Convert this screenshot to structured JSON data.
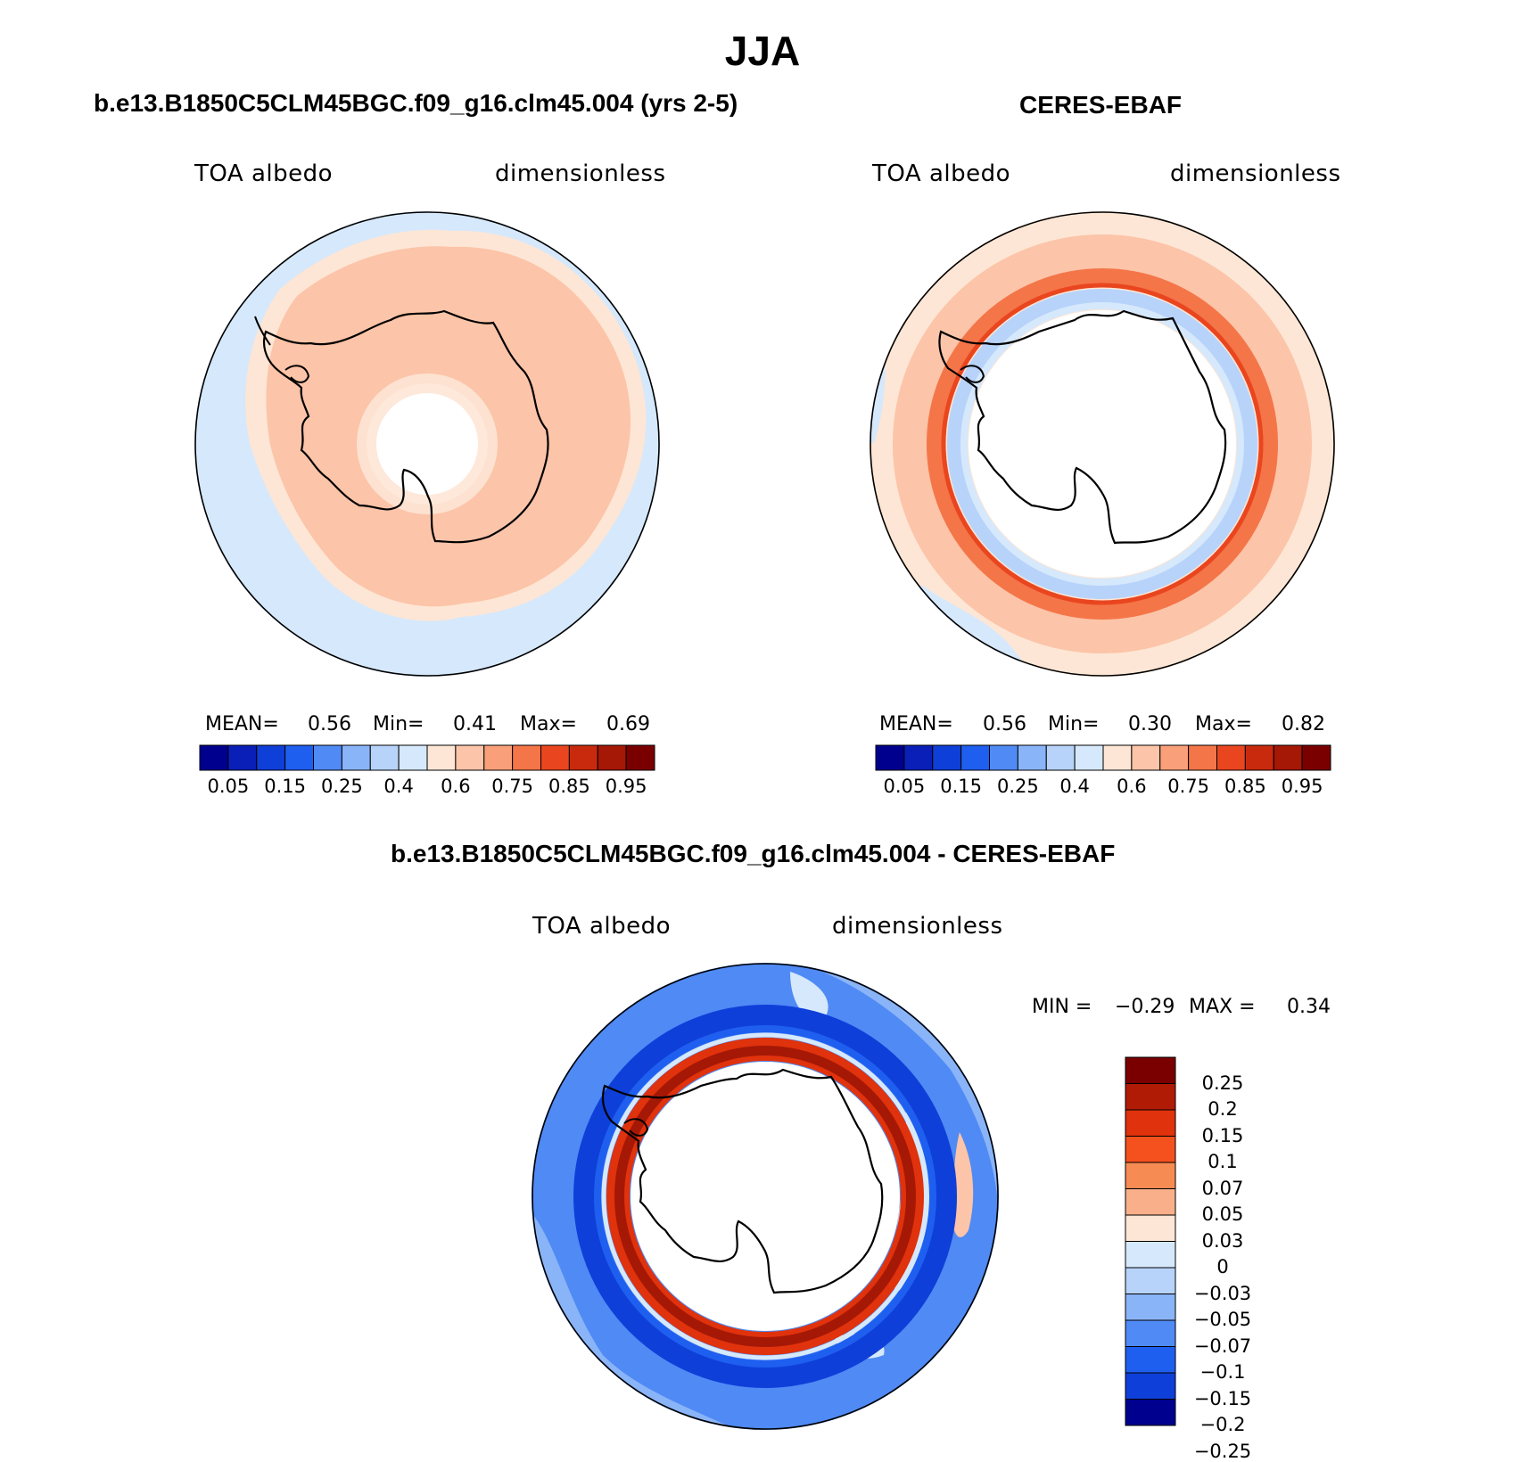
{
  "header": {
    "season": "JJA"
  },
  "panels": {
    "model": {
      "title": "b.e13.B1850C5CLM45BGC.f09_g16.clm45.004 (yrs 2-5)",
      "variable": "TOA albedo",
      "units": "dimensionless",
      "stats": {
        "mean_label": "MEAN=",
        "mean": "0.56",
        "min_label": "Min=",
        "min": "0.41",
        "max_label": "Max=",
        "max": "0.69"
      }
    },
    "obs": {
      "title": "CERES-EBAF",
      "variable": "TOA albedo",
      "units": "dimensionless",
      "stats": {
        "mean_label": "MEAN=",
        "mean": "0.56",
        "min_label": "Min=",
        "min": "0.30",
        "max_label": "Max=",
        "max": "0.82"
      }
    },
    "diff": {
      "title": "b.e13.B1850C5CLM45BGC.f09_g16.clm45.004 - CERES-EBAF",
      "variable": "TOA albedo",
      "units": "dimensionless",
      "stats": {
        "min_label": "MIN =",
        "min": "−0.29",
        "max_label": "MAX =",
        "max": "0.34"
      }
    }
  },
  "colorbars": {
    "abs_colors": [
      "#00008f",
      "#0a1fb8",
      "#0f3fd9",
      "#1f5ff0",
      "#4f8af5",
      "#8ab4f8",
      "#b7d3fa",
      "#d6e8fb",
      "#fde6d5",
      "#fcc4a8",
      "#f9a07a",
      "#f47548",
      "#e9461f",
      "#c92a0d",
      "#a51806",
      "#7a0000"
    ],
    "abs_ticks": [
      "0.05",
      "0.15",
      "0.25",
      "0.4",
      "0.6",
      "0.75",
      "0.85",
      "0.95"
    ],
    "diff_colors": [
      "#7a0000",
      "#b01b05",
      "#e0320c",
      "#f4511e",
      "#f78b54",
      "#f9b08a",
      "#fde6d5",
      "#d6e8fb",
      "#b7d3fa",
      "#8ab4f8",
      "#4f8af5",
      "#1f5ff0",
      "#0f3fd9",
      "#00008f"
    ],
    "diff_ticks": [
      "0.25",
      "0.2",
      "0.15",
      "0.1",
      "0.07",
      "0.05",
      "0.03",
      "0",
      "−0.03",
      "−0.05",
      "−0.07",
      "−0.1",
      "−0.15",
      "−0.2",
      "−0.25"
    ]
  }
}
